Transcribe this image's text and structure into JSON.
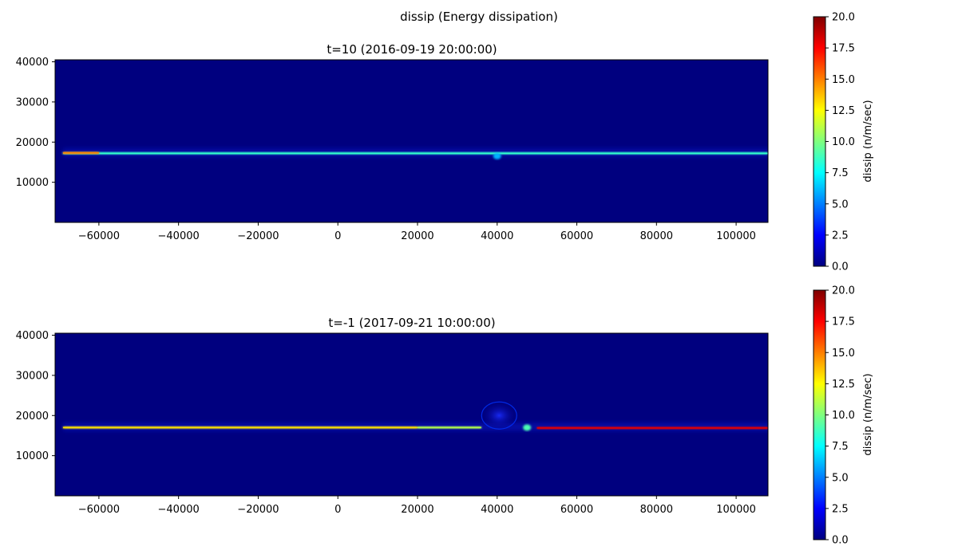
{
  "chart_data": [
    {
      "type": "heatmap",
      "suptitle": "dissip (Energy dissipation)",
      "title": "t=10 (2016-09-19 20:00:00)",
      "xlabel": "",
      "ylabel": "",
      "xlim": [
        -71000,
        108000
      ],
      "ylim": [
        0,
        40500
      ],
      "xticks": [
        -60000,
        -40000,
        -20000,
        0,
        20000,
        40000,
        60000,
        80000,
        100000
      ],
      "yticks": [
        10000,
        20000,
        30000,
        40000
      ],
      "colormap": "jet",
      "colorbar": {
        "label": "dissip (n/m/sec)",
        "range": [
          0,
          20
        ],
        "ticks": [
          0.0,
          2.5,
          5.0,
          7.5,
          10.0,
          12.5,
          15.0,
          17.5,
          20.0
        ]
      },
      "features": [
        {
          "kind": "band",
          "x": [
            -69000,
            108000
          ],
          "y": 17200,
          "value": 8.5,
          "note": "thin bright interface"
        },
        {
          "kind": "band",
          "x": [
            -69000,
            -60000
          ],
          "y": 17300,
          "value": 15,
          "note": "warm streak at left edge"
        },
        {
          "kind": "spot",
          "x": 40000,
          "y": 16500,
          "value": 6
        }
      ]
    },
    {
      "type": "heatmap",
      "title": "t=-1 (2017-09-21 10:00:00)",
      "xlabel": "",
      "ylabel": "",
      "xlim": [
        -71000,
        108000
      ],
      "ylim": [
        0,
        40500
      ],
      "xticks": [
        -60000,
        -40000,
        -20000,
        0,
        20000,
        40000,
        60000,
        80000,
        100000
      ],
      "yticks": [
        10000,
        20000,
        30000,
        40000
      ],
      "colormap": "jet",
      "colorbar": {
        "label": "dissip (n/m/sec)",
        "range": [
          0,
          20
        ],
        "ticks": [
          0.0,
          2.5,
          5.0,
          7.5,
          10.0,
          12.5,
          15.0,
          17.5,
          20.0
        ]
      },
      "features": [
        {
          "kind": "band",
          "x": [
            -69000,
            20000
          ],
          "y": 17000,
          "value": 13
        },
        {
          "kind": "band",
          "x": [
            20000,
            36000
          ],
          "y": 17000,
          "value": 11
        },
        {
          "kind": "band",
          "x": [
            50000,
            108000
          ],
          "y": 16900,
          "value": 18
        },
        {
          "kind": "bulge",
          "x": 40500,
          "y": 20000,
          "value": 3.5
        },
        {
          "kind": "spot",
          "x": 47500,
          "y": 17000,
          "value": 9
        }
      ]
    }
  ],
  "colors": {
    "background_min": "#00007f",
    "jet_stops": [
      "#00007f",
      "#0000ff",
      "#007fff",
      "#00ffff",
      "#7fff7f",
      "#ffff00",
      "#ff7f00",
      "#ff0000",
      "#7f0000"
    ]
  }
}
